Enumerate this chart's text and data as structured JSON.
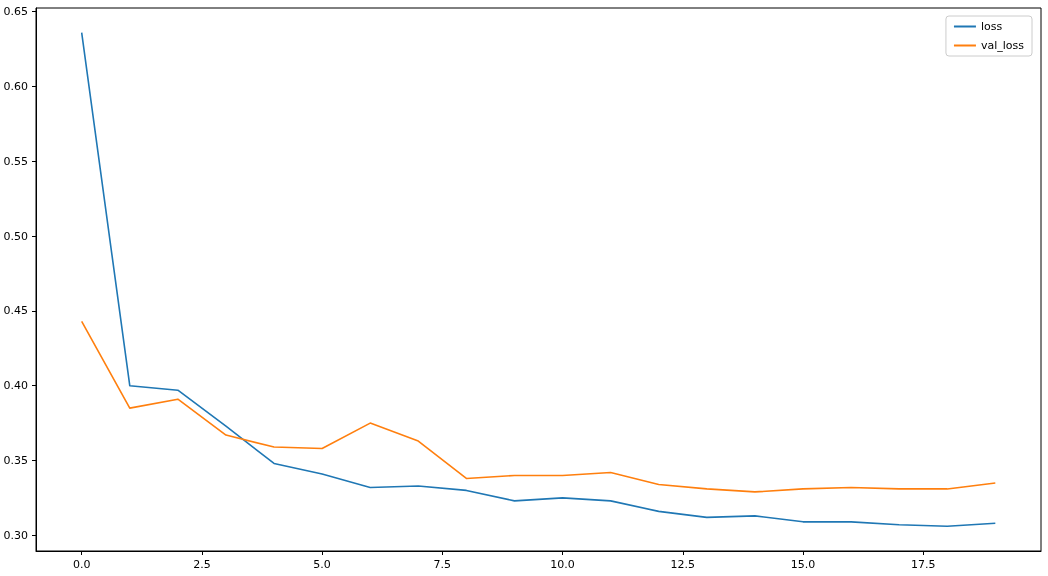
{
  "chart_data": {
    "type": "line",
    "x": [
      0,
      1,
      2,
      3,
      4,
      5,
      6,
      7,
      8,
      9,
      10,
      11,
      12,
      13,
      14,
      15,
      16,
      17,
      18,
      19
    ],
    "series": [
      {
        "name": "loss",
        "color": "#1f77b4",
        "values": [
          0.636,
          0.4,
          0.397,
          0.373,
          0.348,
          0.341,
          0.332,
          0.333,
          0.33,
          0.323,
          0.325,
          0.323,
          0.316,
          0.312,
          0.313,
          0.309,
          0.309,
          0.307,
          0.306,
          0.308
        ]
      },
      {
        "name": "val_loss",
        "color": "#ff7f0e",
        "values": [
          0.443,
          0.385,
          0.391,
          0.367,
          0.359,
          0.358,
          0.375,
          0.363,
          0.338,
          0.34,
          0.34,
          0.342,
          0.334,
          0.331,
          0.329,
          0.331,
          0.332,
          0.331,
          0.331,
          0.335
        ]
      }
    ],
    "xlim": [
      -0.95,
      19.95
    ],
    "xticks": [
      {
        "value": 0,
        "label": "0.0"
      },
      {
        "value": 2.5,
        "label": "2.5"
      },
      {
        "value": 5,
        "label": "5.0"
      },
      {
        "value": 7.5,
        "label": "7.5"
      },
      {
        "value": 10,
        "label": "10.0"
      },
      {
        "value": 12.5,
        "label": "12.5"
      },
      {
        "value": 15,
        "label": "15.0"
      },
      {
        "value": 17.5,
        "label": "17.5"
      }
    ],
    "ylim": [
      0.2895,
      0.6525
    ],
    "yticks": [
      {
        "value": 0.3,
        "label": "0.30"
      },
      {
        "value": 0.35,
        "label": "0.35"
      },
      {
        "value": 0.4,
        "label": "0.40"
      },
      {
        "value": 0.45,
        "label": "0.45"
      },
      {
        "value": 0.5,
        "label": "0.50"
      },
      {
        "value": 0.55,
        "label": "0.55"
      },
      {
        "value": 0.6,
        "label": "0.60"
      },
      {
        "value": 0.65,
        "label": "0.65"
      }
    ],
    "grid": false,
    "legend": "top right",
    "marker": "none",
    "line_style": "solid"
  }
}
